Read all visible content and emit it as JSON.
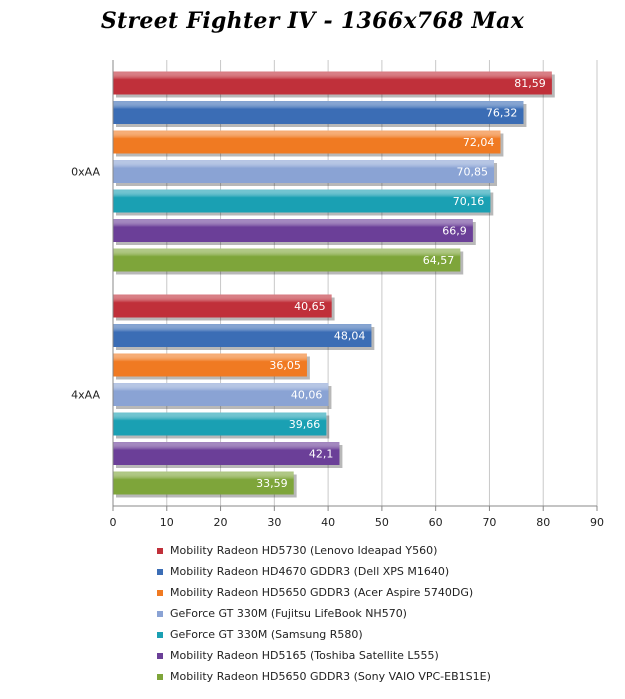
{
  "chart_data": {
    "type": "bar",
    "orientation": "horizontal",
    "title": "Street Fighter IV - 1366x768 Max",
    "xlabel": "",
    "ylabel": "",
    "xlim": [
      0,
      90
    ],
    "x_ticks": [
      0,
      10,
      20,
      30,
      40,
      50,
      60,
      70,
      80,
      90
    ],
    "grid": true,
    "legend_position": "bottom",
    "categories": [
      "0xAA",
      "4xAA"
    ],
    "series": [
      {
        "name": "Mobility Radeon HD5730 (Lenovo Ideapad Y560)",
        "color": "#c0303a",
        "values": [
          81.59,
          40.65
        ],
        "labels": [
          "81,59",
          "40,65"
        ]
      },
      {
        "name": "Mobility Radeon HD4670 GDDR3 (Dell XPS M1640)",
        "color": "#3b6db5",
        "values": [
          76.32,
          48.04
        ],
        "labels": [
          "76,32",
          "48,04"
        ]
      },
      {
        "name": "Mobility Radeon HD5650 GDDR3 (Acer Aspire 5740DG)",
        "color": "#f07a22",
        "values": [
          72.04,
          36.05
        ],
        "labels": [
          "72,04",
          "36,05"
        ]
      },
      {
        "name": "GeForce GT 330M (Fujitsu LifeBook NH570)",
        "color": "#8aa3d4",
        "values": [
          70.85,
          40.06
        ],
        "labels": [
          "70,85",
          "40,06"
        ]
      },
      {
        "name": "GeForce GT 330M (Samsung R580)",
        "color": "#1aa0b3",
        "values": [
          70.16,
          39.66
        ],
        "labels": [
          "70,16",
          "39,66"
        ]
      },
      {
        "name": "Mobility Radeon HD5165 (Toshiba Satellite L555)",
        "color": "#6b3f98",
        "values": [
          66.9,
          42.1
        ],
        "labels": [
          "66,9",
          "42,1"
        ]
      },
      {
        "name": "Mobility Radeon HD5650 GDDR3 (Sony VAIO VPC-EB1S1E)",
        "color": "#7ea53a",
        "values": [
          64.57,
          33.59
        ],
        "labels": [
          "64,57",
          "33,59"
        ]
      }
    ]
  }
}
